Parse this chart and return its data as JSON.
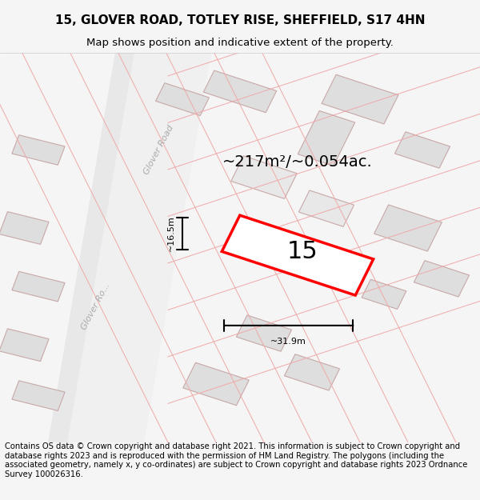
{
  "title_line1": "15, GLOVER ROAD, TOTLEY RISE, SHEFFIELD, S17 4HN",
  "title_line2": "Map shows position and indicative extent of the property.",
  "area_text": "~217m²/~0.054ac.",
  "plot_number": "15",
  "width_label": "~31.9m",
  "height_label": "~16.5m",
  "road_label1": "Glover Road",
  "road_label2": "Glover Ro...",
  "footer_text": "Contains OS data © Crown copyright and database right 2021. This information is subject to Crown copyright and database rights 2023 and is reproduced with the permission of HM Land Registry. The polygons (including the associated geometry, namely x, y co-ordinates) are subject to Crown copyright and database rights 2023 Ordnance Survey 100026316.",
  "bg_color": "#f5f5f5",
  "map_bg": "#f0eeee",
  "plot_fill": "#ffffff",
  "plot_edge": "#ff0000",
  "building_fill": "#e0dede",
  "building_edge": "#d0a0a0",
  "road_color": "#ffffff",
  "road_stripe": "#e8d8d8",
  "title_fontsize": 11,
  "subtitle_fontsize": 9.5,
  "footer_fontsize": 7.2
}
